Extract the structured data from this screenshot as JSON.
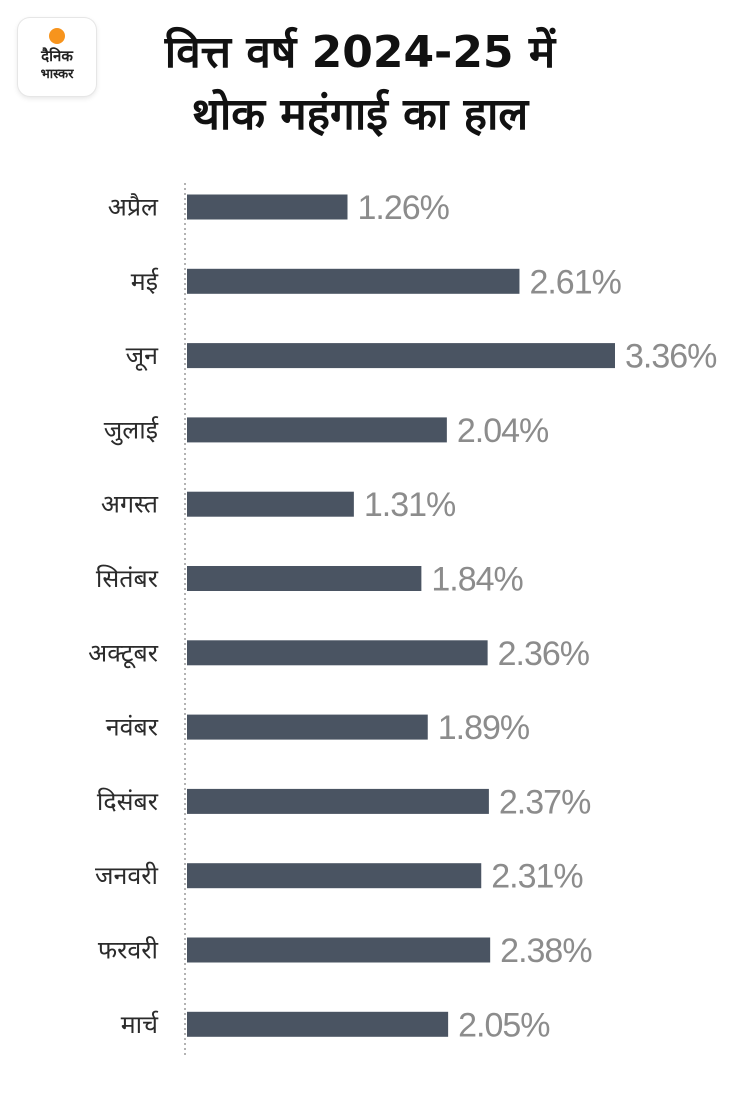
{
  "logo": {
    "line1": "दैनिक",
    "line2": "भास्कर"
  },
  "title_lines": [
    "वित्त वर्ष 2024-25 में",
    "थोक महंगाई का हाल"
  ],
  "colors": {
    "bar": "#4a5462",
    "value_text": "#8c8c8c",
    "logo_dot": "#f7941d"
  },
  "chart_data": {
    "type": "bar",
    "orientation": "horizontal",
    "title": "वित्त वर्ष 2024-25 में थोक महंगाई का हाल",
    "categories": [
      "अप्रैल",
      "मई",
      "जून",
      "जुलाई",
      "अगस्त",
      "सितंबर",
      "अक्टूबर",
      "नवंबर",
      "दिसंबर",
      "जनवरी",
      "फरवरी",
      "मार्च"
    ],
    "values": [
      1.26,
      2.61,
      3.36,
      2.04,
      1.31,
      1.84,
      2.36,
      1.89,
      2.37,
      2.31,
      2.38,
      2.05
    ],
    "value_labels": [
      "1.26%",
      "2.61%",
      "3.36%",
      "2.04%",
      "1.31%",
      "1.84%",
      "2.36%",
      "1.89%",
      "2.37%",
      "2.31%",
      "2.38%",
      "2.05%"
    ],
    "xlim": [
      0,
      3.36
    ],
    "grid": false,
    "legend": "none"
  }
}
